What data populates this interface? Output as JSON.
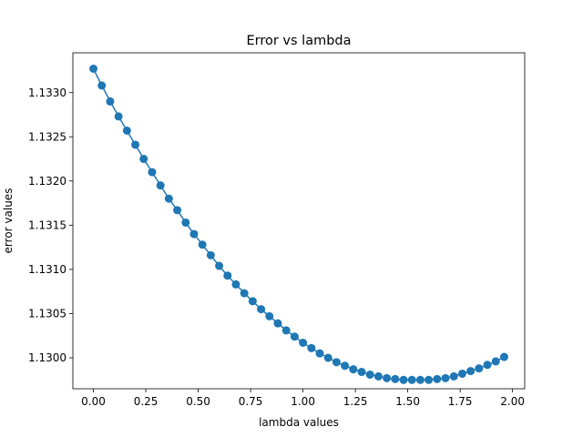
{
  "chart_data": {
    "type": "line",
    "title": "Error vs lambda",
    "xlabel": "lambda values",
    "ylabel": "error values",
    "xlim": [
      -0.098,
      2.058
    ],
    "ylim": [
      1.12965,
      1.13345
    ],
    "xticks": [
      0.0,
      0.25,
      0.5,
      0.75,
      1.0,
      1.25,
      1.5,
      1.75,
      2.0
    ],
    "xtick_labels": [
      "0.00",
      "0.25",
      "0.50",
      "0.75",
      "1.00",
      "1.25",
      "1.50",
      "1.75",
      "2.00"
    ],
    "yticks": [
      1.13,
      1.1305,
      1.131,
      1.1315,
      1.132,
      1.1325,
      1.133
    ],
    "ytick_labels": [
      "1.1300",
      "1.1305",
      "1.1310",
      "1.1315",
      "1.1320",
      "1.1325",
      "1.1330"
    ],
    "grid": false,
    "marker": "circle",
    "color": "#1f77b4",
    "series": [
      {
        "x": [
          0.0,
          0.04,
          0.08,
          0.12,
          0.16,
          0.2,
          0.24,
          0.28,
          0.32,
          0.36,
          0.4,
          0.44,
          0.48,
          0.52,
          0.56,
          0.6,
          0.64,
          0.68,
          0.72,
          0.76,
          0.8,
          0.84,
          0.88,
          0.92,
          0.96,
          1.0,
          1.04,
          1.08,
          1.12,
          1.16,
          1.2,
          1.24,
          1.28,
          1.32,
          1.36,
          1.4,
          1.44,
          1.48,
          1.52,
          1.56,
          1.6,
          1.64,
          1.68,
          1.72,
          1.76,
          1.8,
          1.84,
          1.88,
          1.92,
          1.96
        ],
        "y": [
          1.13327,
          1.13308,
          1.1329,
          1.13273,
          1.13257,
          1.13241,
          1.13225,
          1.1321,
          1.13195,
          1.1318,
          1.13167,
          1.13153,
          1.1314,
          1.13128,
          1.13116,
          1.13104,
          1.13093,
          1.13083,
          1.13073,
          1.13064,
          1.13055,
          1.13047,
          1.13039,
          1.13031,
          1.13024,
          1.13017,
          1.13011,
          1.13005,
          1.13,
          1.12995,
          1.12991,
          1.12987,
          1.12984,
          1.12981,
          1.12979,
          1.12977,
          1.12976,
          1.12975,
          1.12975,
          1.12975,
          1.12975,
          1.12976,
          1.12977,
          1.12979,
          1.12982,
          1.12985,
          1.12988,
          1.12992,
          1.12996,
          1.13001
        ]
      }
    ]
  }
}
